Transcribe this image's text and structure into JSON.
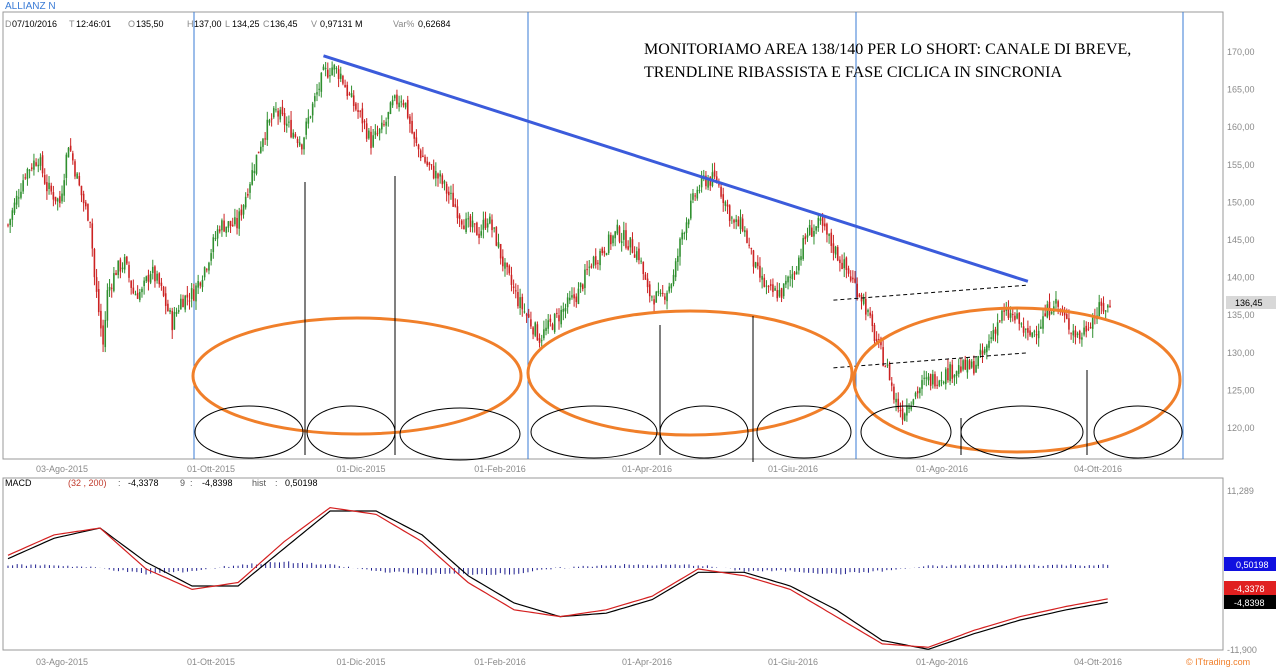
{
  "header": {
    "title": "ALLIANZ N",
    "d_label": "D",
    "date": "07/10/2016",
    "t_label": "T",
    "time": "12:46:01",
    "o_label": "O",
    "open": "135,50",
    "h_label": "H",
    "high": "137,00",
    "l_label": "L",
    "low": "134,25",
    "c_label": "C",
    "close": "136,45",
    "v_label": "V",
    "volume": "0,97131 M",
    "var_label": "Var%",
    "var": "0,62684"
  },
  "annotation": {
    "line1": "MONITORIAMO AREA 138/140 PER LO SHORT: CANALE DI BREVE,",
    "line2": "TRENDLINE RIBASSISTA E FASE CICLICA IN SINCRONIA"
  },
  "price_tag": "136,45",
  "macd_header": {
    "label": "MACD",
    "params": "(32 , 200)",
    "sep1": ":",
    "macd_value": "-4,3378",
    "signal_label": "9",
    "sep2": ":",
    "signal_value": "-4,8398",
    "hist_label": "hist",
    "sep3": ":",
    "hist_value": "0,50198"
  },
  "macd_tags": {
    "hist": "0,50198",
    "macd": "-4,3378",
    "signal": "-4,8398"
  },
  "watermark": "© ITtrading.com",
  "colors": {
    "up": "#2f8f2f",
    "down": "#cc2222",
    "trend": "#3b5bdb",
    "cycle": "#f07f2a",
    "divider": "#3a7bd5",
    "hist": "#1f1f8f"
  },
  "chart_data": [
    {
      "type": "candlestick",
      "title": "ALLIANZ N",
      "ylim": [
        116,
        172
      ],
      "y_ticks": [
        "170,00",
        "165,00",
        "160,00",
        "155,00",
        "150,00",
        "145,00",
        "140,00",
        "135,00",
        "130,00",
        "125,00",
        "120,00"
      ],
      "x_ticks": [
        "03-Ago-2015",
        "01-Ott-2015",
        "01-Dic-2015",
        "01-Feb-2016",
        "01-Apr-2016",
        "01-Giu-2016",
        "01-Ago-2016",
        "04-Ott-2016"
      ],
      "close_path": [
        [
          0,
          147
        ],
        [
          8,
          154
        ],
        [
          14,
          156
        ],
        [
          18,
          152
        ],
        [
          24,
          150
        ],
        [
          28,
          158
        ],
        [
          33,
          152
        ],
        [
          36,
          149
        ],
        [
          38,
          148
        ],
        [
          40,
          140
        ],
        [
          44,
          131
        ],
        [
          46,
          138
        ],
        [
          50,
          141
        ],
        [
          54,
          142
        ],
        [
          58,
          138
        ],
        [
          62,
          138
        ],
        [
          66,
          141
        ],
        [
          70,
          139
        ],
        [
          76,
          134
        ],
        [
          80,
          137
        ],
        [
          86,
          138
        ],
        [
          92,
          142
        ],
        [
          98,
          147
        ],
        [
          106,
          147
        ],
        [
          112,
          153
        ],
        [
          118,
          159
        ],
        [
          124,
          162
        ],
        [
          130,
          160
        ],
        [
          136,
          158
        ],
        [
          140,
          162
        ],
        [
          146,
          167
        ],
        [
          150,
          168
        ],
        [
          154,
          167
        ],
        [
          158,
          164
        ],
        [
          164,
          161
        ],
        [
          168,
          158
        ],
        [
          174,
          160
        ],
        [
          178,
          163
        ],
        [
          182,
          164
        ],
        [
          184,
          163
        ],
        [
          188,
          158
        ],
        [
          194,
          155
        ],
        [
          200,
          153
        ],
        [
          206,
          150
        ],
        [
          212,
          147
        ],
        [
          218,
          146
        ],
        [
          222,
          148
        ],
        [
          226,
          145
        ],
        [
          230,
          141
        ],
        [
          236,
          137
        ],
        [
          242,
          134
        ],
        [
          246,
          132
        ],
        [
          252,
          134
        ],
        [
          258,
          136
        ],
        [
          264,
          138
        ],
        [
          270,
          142
        ],
        [
          276,
          144
        ],
        [
          282,
          146
        ],
        [
          286,
          145
        ],
        [
          292,
          143
        ],
        [
          296,
          138
        ],
        [
          302,
          137
        ],
        [
          308,
          140
        ],
        [
          312,
          146
        ],
        [
          318,
          151
        ],
        [
          322,
          153
        ],
        [
          328,
          153
        ],
        [
          332,
          150
        ],
        [
          336,
          147
        ],
        [
          340,
          147
        ],
        [
          346,
          141
        ],
        [
          352,
          138
        ],
        [
          358,
          138
        ],
        [
          364,
          141
        ],
        [
          370,
          146
        ],
        [
          376,
          147
        ],
        [
          382,
          144
        ],
        [
          388,
          141
        ],
        [
          392,
          139
        ],
        [
          396,
          137
        ],
        [
          400,
          133
        ],
        [
          404,
          130
        ],
        [
          408,
          127
        ],
        [
          410,
          124
        ],
        [
          414,
          122
        ],
        [
          418,
          124
        ],
        [
          424,
          126
        ],
        [
          432,
          127
        ],
        [
          440,
          128
        ],
        [
          446,
          128
        ],
        [
          452,
          130
        ],
        [
          456,
          133
        ],
        [
          460,
          135
        ],
        [
          464,
          135
        ],
        [
          468,
          134
        ],
        [
          472,
          132
        ],
        [
          478,
          134
        ],
        [
          484,
          137
        ],
        [
          490,
          134
        ],
        [
          496,
          132
        ],
        [
          500,
          134
        ],
        [
          506,
          136
        ],
        [
          510,
          136
        ]
      ],
      "trendline": [
        [
          146,
          169.5
        ],
        [
          472,
          139.5
        ]
      ],
      "channel_upper": [
        [
          382,
          137
        ],
        [
          472,
          139
        ]
      ],
      "channel_lower": [
        [
          382,
          128
        ],
        [
          472,
          130
        ]
      ],
      "last_close": 136.45
    },
    {
      "type": "line",
      "title": "MACD",
      "ylim": [
        -11.9,
        11.289
      ],
      "y_ticks": [
        "11,289",
        "-11,900"
      ],
      "series": [
        {
          "name": "MACD",
          "values": [
            [
              0,
              2
            ],
            [
              20,
              5
            ],
            [
              40,
              6
            ],
            [
              60,
              0
            ],
            [
              80,
              -3
            ],
            [
              100,
              -2
            ],
            [
              120,
              4
            ],
            [
              140,
              9
            ],
            [
              160,
              8
            ],
            [
              180,
              4
            ],
            [
              200,
              -2
            ],
            [
              220,
              -6
            ],
            [
              240,
              -7
            ],
            [
              260,
              -6
            ],
            [
              280,
              -4
            ],
            [
              300,
              0
            ],
            [
              320,
              -1
            ],
            [
              340,
              -3
            ],
            [
              360,
              -7
            ],
            [
              380,
              -11
            ],
            [
              400,
              -11.5
            ],
            [
              420,
              -9
            ],
            [
              440,
              -7
            ],
            [
              460,
              -5.5
            ],
            [
              479,
              -4.34
            ]
          ]
        },
        {
          "name": "9",
          "values": [
            [
              0,
              1.5
            ],
            [
              20,
              4.5
            ],
            [
              40,
              6
            ],
            [
              60,
              1
            ],
            [
              80,
              -2.5
            ],
            [
              100,
              -2.5
            ],
            [
              120,
              3
            ],
            [
              140,
              8.5
            ],
            [
              160,
              8.5
            ],
            [
              180,
              5
            ],
            [
              200,
              -1
            ],
            [
              220,
              -5
            ],
            [
              240,
              -7
            ],
            [
              260,
              -6.5
            ],
            [
              280,
              -4.5
            ],
            [
              300,
              -0.5
            ],
            [
              320,
              -0.5
            ],
            [
              340,
              -2.5
            ],
            [
              360,
              -6
            ],
            [
              380,
              -10.5
            ],
            [
              400,
              -11.8
            ],
            [
              420,
              -9.5
            ],
            [
              440,
              -7.5
            ],
            [
              460,
              -6
            ],
            [
              479,
              -4.84
            ]
          ]
        }
      ],
      "histogram_last": 0.50198
    }
  ]
}
